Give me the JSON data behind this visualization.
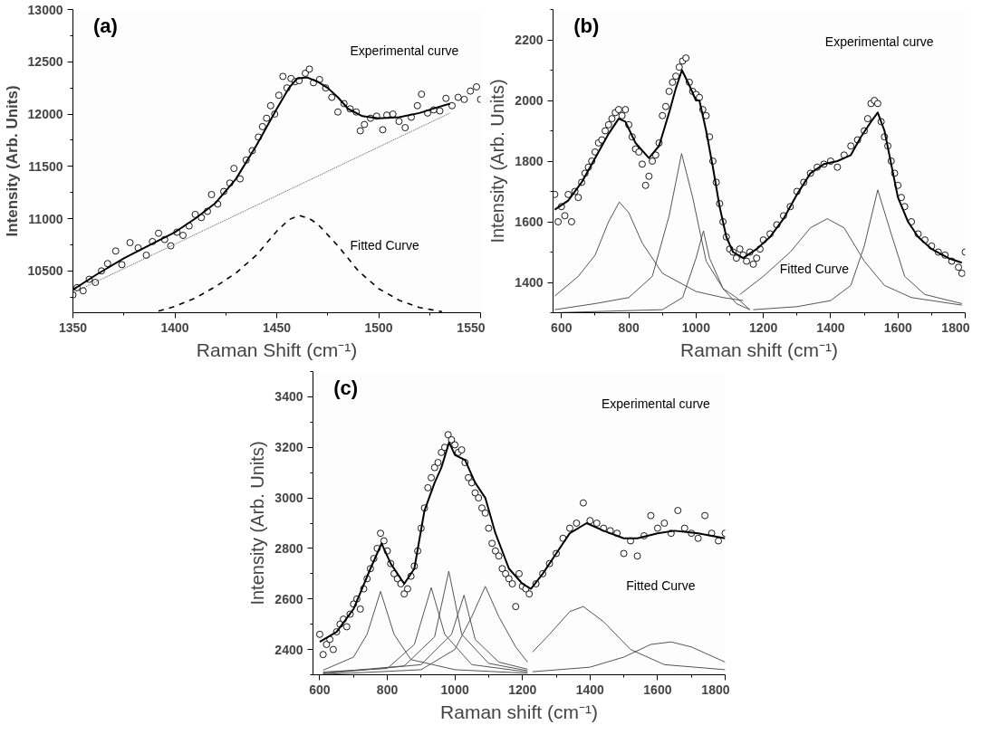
{
  "chart_data": [
    {
      "type": "scatter",
      "title": "(a)",
      "xlabel": "Raman Shift (cm⁻¹)",
      "ylabel": "Intensity (Arb. Units)",
      "xlim": [
        1350,
        1550
      ],
      "xticks": [
        1350,
        1400,
        1450,
        1500,
        1550
      ],
      "ylim": [
        10100,
        13000
      ],
      "yticks": [
        10500,
        11000,
        11500,
        12000,
        12500,
        13000
      ],
      "annotations": [
        "Experimental curve",
        "Fitted Curve"
      ],
      "series": [
        {
          "marker": "circle",
          "color": "#000000",
          "x": [
            1350,
            1352,
            1355,
            1358,
            1361,
            1364,
            1367,
            1371,
            1374,
            1378,
            1382,
            1386,
            1389,
            1392,
            1395,
            1398,
            1401,
            1404,
            1407,
            1410,
            1413,
            1416,
            1418,
            1421,
            1424,
            1427,
            1429,
            1432,
            1435,
            1438,
            1441,
            1443,
            1445,
            1447,
            1449,
            1451,
            1453,
            1455,
            1457,
            1459,
            1461,
            1464,
            1466,
            1468,
            1471,
            1474,
            1477,
            1480,
            1483,
            1486,
            1489,
            1491,
            1493,
            1496,
            1499,
            1502,
            1504,
            1507,
            1510,
            1513,
            1516,
            1519,
            1521,
            1524,
            1527,
            1530,
            1533,
            1536,
            1539,
            1542,
            1545,
            1548,
            1550
          ],
          "values": [
            10270,
            10340,
            10310,
            10420,
            10390,
            10500,
            10570,
            10690,
            10560,
            10770,
            10720,
            10650,
            10780,
            10860,
            10800,
            10740,
            10870,
            10840,
            10930,
            11040,
            11010,
            11070,
            11230,
            11140,
            11260,
            11340,
            11480,
            11380,
            11560,
            11650,
            11780,
            11880,
            11960,
            12080,
            12000,
            12180,
            12360,
            12250,
            12340,
            12310,
            12320,
            12390,
            12430,
            12300,
            12330,
            12250,
            12160,
            12020,
            12100,
            12050,
            12020,
            11840,
            11900,
            11960,
            11980,
            11850,
            11990,
            12000,
            11930,
            11870,
            11970,
            12080,
            12190,
            12010,
            12040,
            12030,
            12150,
            12080,
            12160,
            12140,
            12220,
            12260,
            12140
          ]
        },
        {
          "type": "line",
          "line_style": "solid",
          "color": "#000000",
          "x": [
            1350,
            1362,
            1375,
            1388,
            1400,
            1410,
            1420,
            1430,
            1440,
            1450,
            1456,
            1460,
            1465,
            1470,
            1475,
            1480,
            1485,
            1492,
            1500,
            1510,
            1520,
            1528,
            1535
          ],
          "values": [
            10320,
            10470,
            10620,
            10750,
            10870,
            11000,
            11150,
            11380,
            11700,
            12050,
            12250,
            12340,
            12350,
            12310,
            12250,
            12160,
            12050,
            11980,
            11960,
            11970,
            12010,
            12060,
            12100
          ]
        },
        {
          "type": "line",
          "line_style": "dotted",
          "color": "#555555",
          "x": [
            1350,
            1535
          ],
          "values": [
            10290,
            12010
          ]
        },
        {
          "type": "line",
          "line_style": "dashed",
          "color": "#000000",
          "x": [
            1392,
            1400,
            1410,
            1420,
            1430,
            1440,
            1450,
            1456,
            1461,
            1466,
            1470,
            1480,
            1490,
            1500,
            1510,
            1520,
            1531
          ],
          "values": [
            10115,
            10160,
            10240,
            10350,
            10480,
            10650,
            10880,
            10990,
            11030,
            11000,
            10950,
            10740,
            10500,
            10330,
            10220,
            10150,
            10110
          ]
        }
      ]
    },
    {
      "type": "scatter",
      "title": "(b)",
      "xlabel": "Raman shift (cm⁻¹)",
      "ylabel": "Intensity (Arb. Units)",
      "xlim": [
        575,
        1800
      ],
      "xticks": [
        600,
        800,
        1000,
        1200,
        1400,
        1600,
        1800
      ],
      "ylim": [
        1300,
        2300
      ],
      "yticks": [
        1400,
        1600,
        1800,
        2000,
        2200
      ],
      "annotations": [
        "Experimental curve",
        "Fitted Curve"
      ],
      "series": [
        {
          "marker": "circle",
          "color": "#000000",
          "x": [
            580,
            590,
            600,
            610,
            620,
            630,
            640,
            650,
            660,
            670,
            680,
            690,
            700,
            710,
            720,
            730,
            740,
            750,
            760,
            770,
            780,
            790,
            800,
            810,
            820,
            830,
            840,
            850,
            860,
            870,
            880,
            890,
            900,
            910,
            920,
            930,
            940,
            950,
            960,
            970,
            980,
            990,
            1000,
            1010,
            1020,
            1030,
            1040,
            1050,
            1060,
            1070,
            1080,
            1090,
            1100,
            1110,
            1120,
            1130,
            1140,
            1150,
            1160,
            1170,
            1180,
            1190,
            1200,
            1220,
            1240,
            1260,
            1280,
            1300,
            1320,
            1340,
            1360,
            1380,
            1400,
            1420,
            1440,
            1460,
            1480,
            1500,
            1510,
            1520,
            1530,
            1540,
            1550,
            1560,
            1570,
            1580,
            1590,
            1600,
            1610,
            1620,
            1640,
            1660,
            1680,
            1700,
            1720,
            1740,
            1760,
            1780,
            1790,
            1800
          ],
          "values": [
            1690,
            1600,
            1650,
            1620,
            1690,
            1600,
            1700,
            1680,
            1730,
            1760,
            1780,
            1800,
            1830,
            1860,
            1870,
            1900,
            1920,
            1940,
            1960,
            1970,
            1950,
            1970,
            1920,
            1880,
            1840,
            1830,
            1790,
            1720,
            1750,
            1800,
            1820,
            1860,
            1950,
            1980,
            2030,
            2060,
            2080,
            2110,
            2130,
            2140,
            2060,
            2030,
            2020,
            2010,
            1970,
            1950,
            1880,
            1800,
            1730,
            1660,
            1600,
            1550,
            1510,
            1500,
            1480,
            1510,
            1490,
            1470,
            1500,
            1460,
            1480,
            1510,
            1540,
            1560,
            1590,
            1620,
            1650,
            1700,
            1730,
            1760,
            1780,
            1790,
            1800,
            1780,
            1820,
            1850,
            1870,
            1900,
            1940,
            1990,
            2000,
            1990,
            1930,
            1880,
            1850,
            1800,
            1760,
            1720,
            1680,
            1650,
            1600,
            1560,
            1540,
            1520,
            1500,
            1490,
            1470,
            1450,
            1430,
            1500
          ]
        },
        {
          "type": "line",
          "line_style": "solid",
          "color": "#000000",
          "x": [
            580,
            620,
            660,
            700,
            740,
            770,
            790,
            820,
            860,
            890,
            920,
            940,
            958,
            980,
            1000,
            1010,
            1030,
            1050,
            1070,
            1090,
            1110,
            1140,
            1180,
            1220,
            1260,
            1300,
            1340,
            1380,
            1420,
            1460,
            1490,
            1520,
            1540,
            1560,
            1580,
            1600,
            1630,
            1660,
            1700,
            1750,
            1790
          ],
          "values": [
            1640,
            1670,
            1730,
            1810,
            1890,
            1940,
            1930,
            1860,
            1810,
            1850,
            1960,
            2040,
            2100,
            2050,
            2000,
            2000,
            1900,
            1780,
            1650,
            1550,
            1500,
            1480,
            1510,
            1550,
            1610,
            1690,
            1760,
            1790,
            1800,
            1820,
            1880,
            1930,
            1960,
            1900,
            1790,
            1680,
            1600,
            1550,
            1510,
            1480,
            1465
          ]
        },
        {
          "type": "line",
          "line_style": "solid",
          "color": "#555555",
          "x": [
            580,
            650,
            700,
            740,
            772,
            800,
            840,
            900,
            1000,
            1080,
            1140
          ],
          "values": [
            1355,
            1420,
            1490,
            1600,
            1665,
            1630,
            1530,
            1430,
            1370,
            1350,
            1340
          ]
        },
        {
          "type": "line",
          "line_style": "solid",
          "color": "#555555",
          "x": [
            580,
            700,
            800,
            870,
            920,
            957,
            990,
            1030,
            1080,
            1120,
            1160
          ],
          "values": [
            1310,
            1330,
            1350,
            1420,
            1620,
            1825,
            1680,
            1470,
            1380,
            1350,
            1310
          ]
        },
        {
          "type": "line",
          "line_style": "solid",
          "color": "#555555",
          "x": [
            580,
            900,
            960,
            1000,
            1022,
            1040,
            1080,
            1120,
            1160
          ],
          "values": [
            1300,
            1310,
            1350,
            1480,
            1570,
            1480,
            1380,
            1330,
            1310
          ]
        },
        {
          "type": "line",
          "line_style": "solid",
          "color": "#555555",
          "x": [
            1130,
            1200,
            1280,
            1340,
            1390,
            1440,
            1500,
            1560,
            1640,
            1790
          ],
          "values": [
            1360,
            1420,
            1500,
            1580,
            1610,
            1580,
            1470,
            1390,
            1350,
            1325
          ]
        },
        {
          "type": "line",
          "line_style": "solid",
          "color": "#555555",
          "x": [
            1170,
            1300,
            1400,
            1460,
            1500,
            1540,
            1580,
            1620,
            1680,
            1790
          ],
          "values": [
            1310,
            1320,
            1340,
            1390,
            1520,
            1705,
            1560,
            1420,
            1360,
            1330
          ]
        }
      ]
    },
    {
      "type": "scatter",
      "title": "(c)",
      "xlabel": "Raman shift (cm⁻¹)",
      "ylabel": "Intensity (Arb. Units)",
      "xlim": [
        580,
        1800
      ],
      "xticks": [
        600,
        800,
        1000,
        1200,
        1400,
        1600,
        1800
      ],
      "ylim": [
        2300,
        3500
      ],
      "yticks": [
        2400,
        2600,
        2800,
        3000,
        3200,
        3400
      ],
      "annotations": [
        "Experimental curve",
        "Fitted Curve"
      ],
      "series": [
        {
          "marker": "circle",
          "color": "#000000",
          "x": [
            600,
            610,
            620,
            630,
            640,
            650,
            660,
            670,
            680,
            690,
            700,
            710,
            720,
            730,
            740,
            750,
            760,
            770,
            780,
            790,
            800,
            810,
            820,
            830,
            840,
            850,
            860,
            870,
            880,
            890,
            900,
            910,
            920,
            930,
            940,
            950,
            960,
            970,
            980,
            990,
            1000,
            1010,
            1020,
            1030,
            1040,
            1050,
            1060,
            1070,
            1080,
            1090,
            1100,
            1110,
            1120,
            1130,
            1140,
            1150,
            1160,
            1170,
            1180,
            1190,
            1200,
            1210,
            1220,
            1240,
            1260,
            1280,
            1300,
            1320,
            1340,
            1360,
            1380,
            1400,
            1420,
            1440,
            1460,
            1480,
            1500,
            1520,
            1540,
            1560,
            1580,
            1600,
            1620,
            1640,
            1660,
            1680,
            1700,
            1720,
            1740,
            1760,
            1780,
            1800
          ],
          "values": [
            2460,
            2380,
            2420,
            2440,
            2400,
            2470,
            2500,
            2520,
            2490,
            2540,
            2580,
            2600,
            2560,
            2640,
            2680,
            2720,
            2760,
            2800,
            2860,
            2830,
            2790,
            2740,
            2700,
            2680,
            2660,
            2620,
            2640,
            2690,
            2730,
            2790,
            2880,
            2960,
            3040,
            3080,
            3120,
            3140,
            3180,
            3200,
            3250,
            3230,
            3210,
            3180,
            3190,
            3140,
            3080,
            3060,
            3020,
            3000,
            2960,
            2940,
            2880,
            2820,
            2790,
            2770,
            2720,
            2700,
            2680,
            2660,
            2570,
            2700,
            2650,
            2640,
            2620,
            2660,
            2700,
            2740,
            2780,
            2840,
            2880,
            2900,
            2980,
            2910,
            2900,
            2880,
            2870,
            2860,
            2780,
            2830,
            2770,
            2850,
            2930,
            2880,
            2900,
            2860,
            2950,
            2880,
            2860,
            2840,
            2930,
            2860,
            2830,
            2860
          ]
        },
        {
          "type": "line",
          "line_style": "solid",
          "color": "#000000",
          "x": [
            600,
            650,
            700,
            750,
            783,
            810,
            850,
            880,
            910,
            940,
            960,
            983,
            1000,
            1030,
            1060,
            1090,
            1120,
            1160,
            1200,
            1225,
            1260,
            1300,
            1340,
            1390,
            1440,
            1500,
            1540,
            1600,
            1650,
            1720,
            1800
          ],
          "values": [
            2430,
            2470,
            2560,
            2720,
            2820,
            2740,
            2660,
            2720,
            2950,
            3060,
            3120,
            3220,
            3170,
            3150,
            3060,
            3000,
            2860,
            2720,
            2660,
            2640,
            2700,
            2780,
            2860,
            2900,
            2870,
            2840,
            2840,
            2860,
            2870,
            2860,
            2840
          ]
        },
        {
          "type": "line",
          "line_style": "solid",
          "color": "#555555",
          "x": [
            610,
            700,
            740,
            780,
            820,
            870,
            1000,
            1215
          ],
          "values": [
            2318,
            2370,
            2460,
            2630,
            2460,
            2360,
            2320,
            2306
          ]
        },
        {
          "type": "line",
          "line_style": "solid",
          "color": "#555555",
          "x": [
            610,
            800,
            880,
            930,
            970,
            1050,
            1215
          ],
          "values": [
            2311,
            2325,
            2420,
            2645,
            2460,
            2340,
            2311
          ]
        },
        {
          "type": "line",
          "line_style": "solid",
          "color": "#555555",
          "x": [
            610,
            850,
            940,
            982,
            1020,
            1100,
            1215
          ],
          "values": [
            2307,
            2335,
            2450,
            2710,
            2460,
            2345,
            2316
          ]
        },
        {
          "type": "line",
          "line_style": "solid",
          "color": "#555555",
          "x": [
            610,
            900,
            990,
            1027,
            1060,
            1130,
            1215
          ],
          "values": [
            2304,
            2340,
            2460,
            2615,
            2440,
            2350,
            2322
          ]
        },
        {
          "type": "line",
          "line_style": "solid",
          "color": "#555555",
          "x": [
            610,
            900,
            1000,
            1050,
            1090,
            1130,
            1180,
            1215
          ],
          "values": [
            2301,
            2320,
            2400,
            2530,
            2650,
            2530,
            2410,
            2350
          ]
        },
        {
          "type": "line",
          "line_style": "solid",
          "color": "#555555",
          "x": [
            1230,
            1280,
            1340,
            1380,
            1440,
            1520,
            1620,
            1800
          ],
          "values": [
            2390,
            2460,
            2550,
            2570,
            2510,
            2400,
            2340,
            2320
          ]
        },
        {
          "type": "line",
          "line_style": "solid",
          "color": "#555555",
          "x": [
            1230,
            1400,
            1500,
            1580,
            1640,
            1700,
            1800
          ],
          "values": [
            2312,
            2330,
            2370,
            2420,
            2430,
            2410,
            2350
          ]
        }
      ]
    }
  ]
}
